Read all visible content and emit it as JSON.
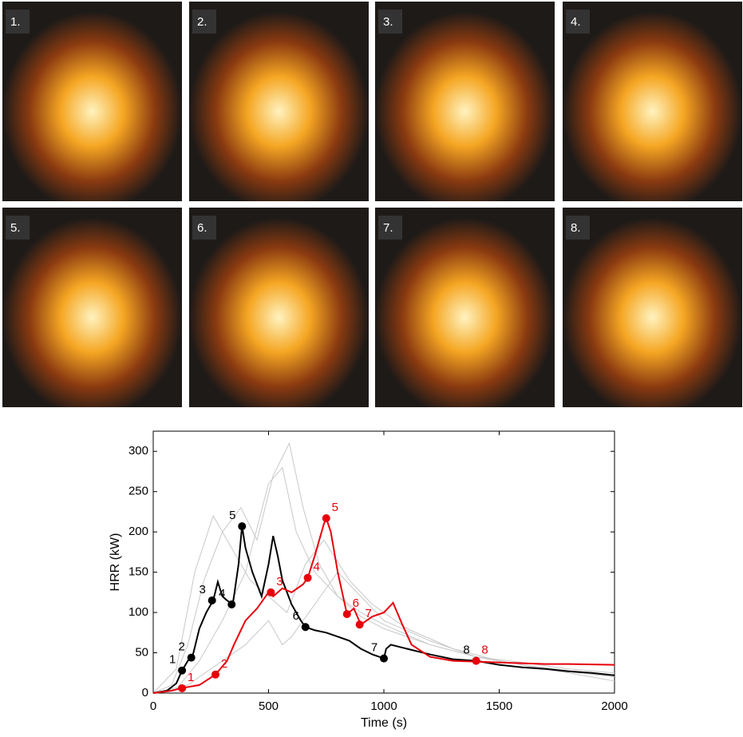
{
  "photos": [
    {
      "label": "1."
    },
    {
      "label": "2."
    },
    {
      "label": "3."
    },
    {
      "label": "4."
    },
    {
      "label": "5."
    },
    {
      "label": "6."
    },
    {
      "label": "7."
    },
    {
      "label": "8."
    }
  ],
  "chart_data": {
    "type": "line",
    "xlabel": "Time (s)",
    "ylabel": "HRR (kW)",
    "xlim": [
      0,
      2000
    ],
    "ylim": [
      0,
      325
    ],
    "xticks": [
      0,
      500,
      1000,
      1500,
      2000
    ],
    "yticks": [
      0,
      50,
      100,
      150,
      200,
      250,
      300
    ],
    "series": [
      {
        "color": "#c8c8c8",
        "x": [
          0,
          80,
          150,
          220,
          300,
          380,
          450,
          520,
          590,
          650,
          720,
          800,
          900,
          1000,
          1200,
          1400,
          1600,
          1800,
          2000
        ],
        "values": [
          0,
          10,
          60,
          140,
          200,
          230,
          190,
          270,
          310,
          230,
          160,
          120,
          95,
          80,
          60,
          45,
          38,
          30,
          25
        ]
      },
      {
        "color": "#c8c8c8",
        "x": [
          0,
          100,
          200,
          300,
          400,
          500,
          560,
          620,
          700,
          800,
          900,
          1000,
          1200,
          1400,
          1600,
          1800,
          2000
        ],
        "values": [
          0,
          5,
          40,
          90,
          150,
          260,
          280,
          200,
          150,
          120,
          100,
          85,
          60,
          45,
          35,
          28,
          22
        ]
      },
      {
        "color": "#c8c8c8",
        "x": [
          0,
          100,
          180,
          260,
          340,
          420,
          500,
          580,
          660,
          740,
          850,
          950,
          1100,
          1300,
          1500,
          1700,
          2000
        ],
        "values": [
          0,
          30,
          150,
          220,
          180,
          140,
          120,
          100,
          160,
          190,
          140,
          110,
          80,
          55,
          40,
          30,
          20
        ]
      },
      {
        "color": "#c8c8c8",
        "x": [
          0,
          150,
          300,
          400,
          500,
          560,
          600,
          700,
          800,
          900,
          1000,
          1200,
          1400,
          1600,
          1800,
          2000
        ],
        "values": [
          0,
          10,
          40,
          60,
          90,
          60,
          70,
          110,
          150,
          120,
          90,
          65,
          45,
          35,
          25,
          15
        ]
      },
      {
        "color": "#000000",
        "x": [
          0,
          60,
          100,
          125,
          150,
          170,
          200,
          230,
          260,
          280,
          300,
          320,
          345,
          370,
          385,
          400,
          430,
          470,
          500,
          520,
          540,
          560,
          600,
          640,
          660,
          700,
          750,
          800,
          850,
          900,
          950,
          1000,
          1010,
          1030,
          1100,
          1200,
          1300,
          1400,
          1500,
          1600,
          1700,
          1800,
          1900,
          2000
        ],
        "values": [
          0,
          3,
          12,
          28,
          40,
          45,
          80,
          100,
          115,
          138,
          120,
          115,
          110,
          160,
          207,
          180,
          150,
          120,
          160,
          195,
          170,
          140,
          110,
          90,
          82,
          78,
          75,
          70,
          65,
          55,
          48,
          43,
          55,
          60,
          55,
          48,
          42,
          40,
          35,
          32,
          30,
          27,
          25,
          22
        ],
        "points": [
          {
            "label": "1",
            "x": 125,
            "y": 28
          },
          {
            "label": "2",
            "x": 165,
            "y": 44
          },
          {
            "label": "3",
            "x": 255,
            "y": 115
          },
          {
            "label": "4",
            "x": 340,
            "y": 110
          },
          {
            "label": "5",
            "x": 385,
            "y": 207
          },
          {
            "label": "6",
            "x": 660,
            "y": 82
          },
          {
            "label": "7",
            "x": 1000,
            "y": 43
          },
          {
            "label": "8",
            "x": 1400,
            "y": 40
          }
        ]
      },
      {
        "color": "#e8000b",
        "x": [
          0,
          80,
          120,
          200,
          270,
          320,
          350,
          400,
          450,
          500,
          520,
          560,
          600,
          650,
          670,
          700,
          740,
          750,
          770,
          800,
          840,
          870,
          900,
          950,
          1000,
          1040,
          1080,
          1120,
          1200,
          1300,
          1400,
          1500,
          1600,
          1700,
          1800,
          2000
        ],
        "values": [
          0,
          3,
          6,
          10,
          23,
          40,
          60,
          90,
          105,
          125,
          120,
          130,
          125,
          135,
          143,
          170,
          210,
          217,
          200,
          150,
          98,
          105,
          85,
          95,
          100,
          112,
          85,
          60,
          45,
          40,
          39,
          38,
          37,
          36,
          36,
          35
        ],
        "points": [
          {
            "label": "1",
            "x": 125,
            "y": 6
          },
          {
            "label": "2",
            "x": 270,
            "y": 23
          },
          {
            "label": "3",
            "x": 510,
            "y": 125
          },
          {
            "label": "4",
            "x": 670,
            "y": 143
          },
          {
            "label": "5",
            "x": 750,
            "y": 217
          },
          {
            "label": "6",
            "x": 840,
            "y": 98
          },
          {
            "label": "7",
            "x": 895,
            "y": 85
          },
          {
            "label": "8",
            "x": 1400,
            "y": 40
          }
        ]
      }
    ]
  }
}
